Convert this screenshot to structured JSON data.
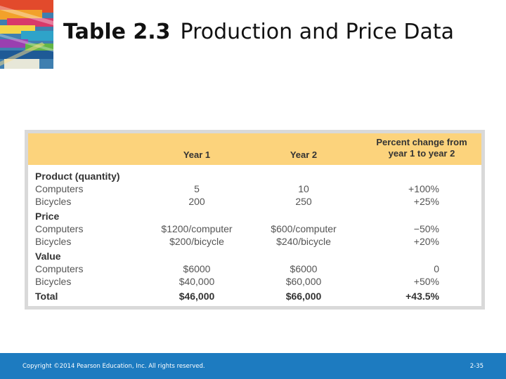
{
  "slide": {
    "title_bold": "Table 2.3",
    "title_rest": "Production and Price Data"
  },
  "table": {
    "headers": {
      "year1": "Year 1",
      "year2": "Year 2",
      "pct_line1": "Percent change from",
      "pct_line2": "year 1 to year 2"
    },
    "rows": [
      {
        "label": "Product (quantity)",
        "y1": "",
        "y2": "",
        "pct": "",
        "kind": "section"
      },
      {
        "label": "Computers",
        "y1": "5",
        "y2": "10",
        "pct": "+100%",
        "kind": "item"
      },
      {
        "label": "Bicycles",
        "y1": "200",
        "y2": "250",
        "pct": "+25%",
        "kind": "item"
      },
      {
        "label": "Price",
        "y1": "",
        "y2": "",
        "pct": "",
        "kind": "section"
      },
      {
        "label": "Computers",
        "y1": "$1200/computer",
        "y2": "$600/computer",
        "pct": "−50%",
        "kind": "item"
      },
      {
        "label": "Bicycles",
        "y1": "$200/bicycle",
        "y2": "$240/bicycle",
        "pct": "+20%",
        "kind": "item"
      },
      {
        "label": "Value",
        "y1": "",
        "y2": "",
        "pct": "",
        "kind": "section"
      },
      {
        "label": "Computers",
        "y1": "$6000",
        "y2": "$6000",
        "pct": "0",
        "kind": "item"
      },
      {
        "label": "Bicycles",
        "y1": "$40,000",
        "y2": "$60,000",
        "pct": "+50%",
        "kind": "item"
      },
      {
        "label": "Total",
        "y1": "$46,000",
        "y2": "$66,000",
        "pct": "+43.5%",
        "kind": "total"
      }
    ]
  },
  "footer": {
    "copyright": "Copyright ©2014 Pearson Education, Inc. All rights reserved.",
    "page": "2-35"
  },
  "colors": {
    "header_fill": "#fcd37c",
    "footer_bar": "#1d7bc0",
    "frame": "#d9d9d9"
  }
}
